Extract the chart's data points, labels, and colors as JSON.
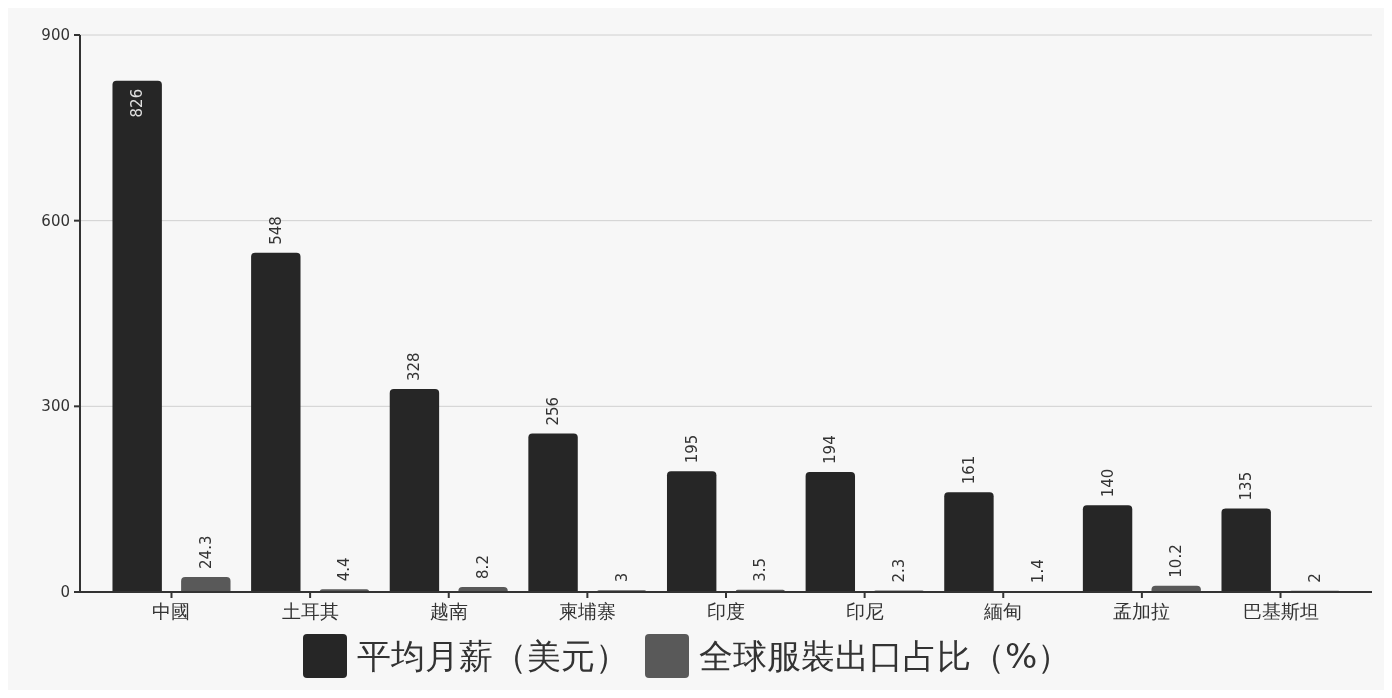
{
  "chart_data": {
    "type": "bar",
    "categories": [
      "中國",
      "土耳其",
      "越南",
      "柬埔寨",
      "印度",
      "印尼",
      "緬甸",
      "孟加拉",
      "巴基斯坦"
    ],
    "series": [
      {
        "name": "平均月薪（美元）",
        "color": "#262626",
        "values": [
          826,
          548,
          328,
          256,
          195,
          194,
          161,
          140,
          135
        ]
      },
      {
        "name": "全球服裝出口占比（%）",
        "color": "#595959",
        "values": [
          24.3,
          4.4,
          8.2,
          3,
          3.5,
          2.3,
          1.4,
          10.2,
          2
        ]
      }
    ],
    "ylim": [
      0,
      900
    ],
    "yticks": [
      0,
      300,
      600,
      900
    ],
    "grid": "y",
    "legend": "bottom",
    "data_labels": true
  }
}
